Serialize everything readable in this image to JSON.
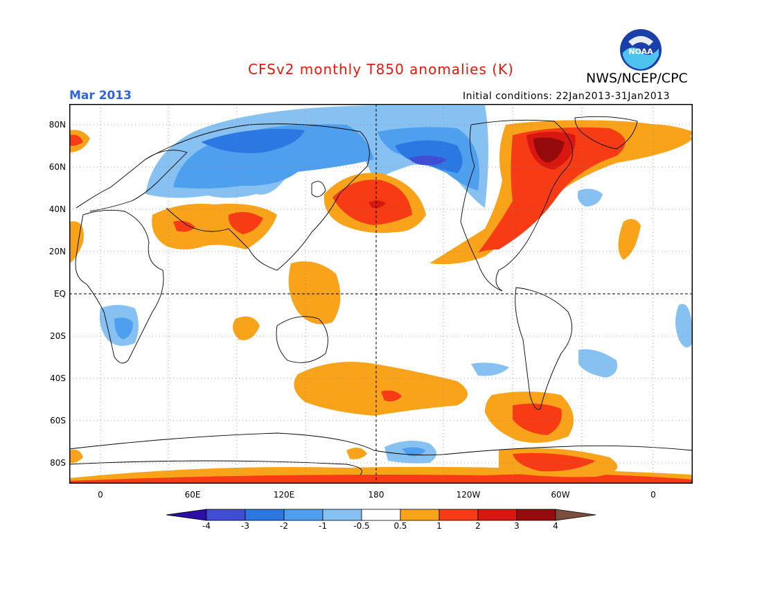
{
  "title": "CFSv2 monthly T850 anomalies (K)",
  "organization": "NWS/NCEP/CPC",
  "logo_text": "NOAA",
  "target_month": "Mar 2013",
  "initial_conditions": "Initial conditions: 22Jan2013-31Jan2013",
  "colors": {
    "title": "#e8160b",
    "month": "#2e64e0",
    "coast": "#000000",
    "neg4": "#2a0ea6",
    "neg3": "#3f4ed2",
    "neg2": "#2c78e3",
    "neg1": "#4ea0ee",
    "neg05": "#86c1f2",
    "pos05": "#f9a31a",
    "pos1": "#f73b14",
    "pos2": "#d81710",
    "pos3": "#950a0a",
    "pos4": "#c7a08d",
    "pos5": "#7b4e3e"
  },
  "map": {
    "projection": "equirectangular, centered on 180",
    "lat_labels": [
      "80N",
      "60N",
      "40N",
      "20N",
      "EQ",
      "20S",
      "40S",
      "60S",
      "80S"
    ],
    "lon_labels": [
      "0",
      "60E",
      "120E",
      "180",
      "120W",
      "60W",
      "0"
    ],
    "gridlines": "dotted every 20° latitude / 30° longitude",
    "dashed_lines": [
      "equator",
      "180 meridian"
    ]
  },
  "colorbar": {
    "labels": [
      "-4",
      "-3",
      "-2",
      "-1",
      "-0.5",
      "0.5",
      "1",
      "2",
      "3",
      "4"
    ],
    "bins": [
      {
        "range": "< -4",
        "color": "#2a0ea6"
      },
      {
        "range": "-4 to -3",
        "color": "#3f4ed2"
      },
      {
        "range": "-3 to -2",
        "color": "#2c78e3"
      },
      {
        "range": "-2 to -1",
        "color": "#4ea0ee"
      },
      {
        "range": "-1 to -0.5",
        "color": "#86c1f2"
      },
      {
        "range": "-0.5 to 0.5",
        "color": "#ffffff"
      },
      {
        "range": "0.5 to 1",
        "color": "#f9a31a"
      },
      {
        "range": "1 to 2",
        "color": "#f73b14"
      },
      {
        "range": "2 to 3",
        "color": "#d81710"
      },
      {
        "range": "3 to 4",
        "color": "#950a0a"
      },
      {
        "range": "> 4",
        "color": "#c7a08d"
      }
    ]
  }
}
